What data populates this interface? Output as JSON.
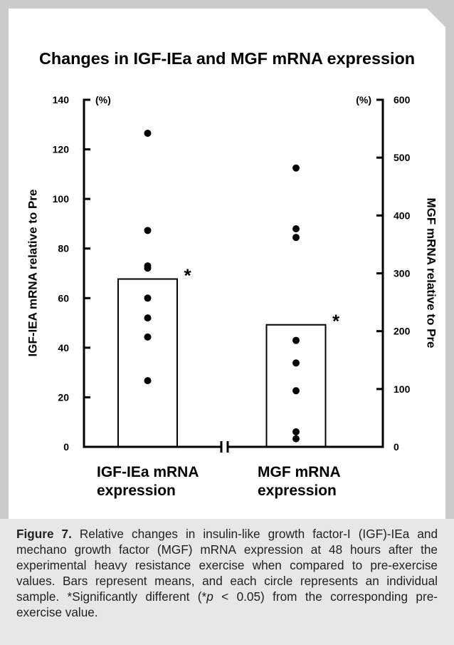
{
  "colors": {
    "frame": "#cbcbcb",
    "panel": "#ffffff",
    "caption_background": "#e7e7e7",
    "ink": "#000000"
  },
  "chart_data": {
    "type": "bar",
    "title": "Changes in IGF-IEa and MGF mRNA expression",
    "categories": [
      "IGF-IEa mRNA expression",
      "MGF mRNA expression"
    ],
    "y_left": {
      "label": "IGF-IEA mRNA relative to Pre",
      "unit": "(%)",
      "range": [
        0,
        140
      ],
      "ticks": [
        0,
        20,
        40,
        60,
        80,
        100,
        120,
        140
      ]
    },
    "y_right": {
      "label": "MGF mRNA relative to Pre",
      "unit": "(%)",
      "range": [
        0,
        600
      ],
      "ticks": [
        0,
        100,
        200,
        300,
        400,
        500,
        600
      ]
    },
    "series": [
      {
        "category_index": 0,
        "axis": "left",
        "mean": 67.7,
        "points": [
          126.5,
          87.3,
          73.0,
          72.1,
          60.0,
          52.0,
          44.3,
          26.7
        ],
        "significance": "*"
      },
      {
        "category_index": 1,
        "axis": "right",
        "mean": 211,
        "points": [
          482,
          377,
          362,
          184,
          145,
          97,
          26,
          14
        ],
        "significance": "*"
      }
    ],
    "x_axis_break": true,
    "grid": false,
    "legend": "none"
  },
  "caption": {
    "label": "Figure 7.",
    "text_1": "Relative changes in insulin-like growth factor-I (IGF)-IEa and mechano growth factor (MGF) mRNA expression at 48 hours after the experimental heavy resistance exercise when compared to pre-exercise values. Bars represent means, and each circle represents an individual sample. *Significantly different (*",
    "text_italic": "p",
    "text_2": " < 0.05) from the corresponding pre-exercise value."
  }
}
